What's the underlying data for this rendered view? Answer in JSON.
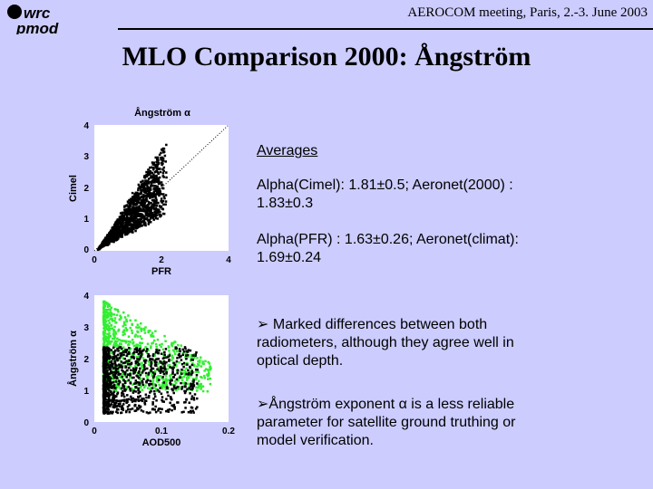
{
  "header": {
    "logo_line1": "wrc",
    "logo_line2": "pmod",
    "meeting": "AEROCOM meeting, Paris, 2.-3. June 2003"
  },
  "title": "MLO Comparison 2000: Ångström",
  "averages": {
    "heading": "Averages",
    "line1": "Alpha(Cimel): 1.81±0.5;   Aeronet(2000) :",
    "line1b": "1.83±0.3",
    "line2": "Alpha(PFR)  : 1.63±0.26; Aeronet(climat):",
    "line2b": "1.69±0.24"
  },
  "bullets": [
    {
      "marker": "Ø",
      "lines": [
        "Marked differences between both",
        "radiometers, although they agree well in",
        "optical depth."
      ]
    },
    {
      "marker": "Ø",
      "lines": [
        "Ångström exponent α is a less reliable",
        "parameter for satellite ground truthing or",
        "model verification."
      ]
    }
  ],
  "chart_data": [
    {
      "type": "scatter",
      "title": "Ångström α",
      "xlabel": "PFR",
      "ylabel": "Cimel",
      "xlim": [
        0,
        4
      ],
      "ylim": [
        0,
        4
      ],
      "xticks": [
        "0",
        "2",
        "4"
      ],
      "yticks": [
        "0",
        "1",
        "2",
        "3",
        "4"
      ],
      "reference_line": "1:1 dotted",
      "series": [
        {
          "name": "Cimel vs PFR",
          "color": "#000000",
          "cluster_center": [
            1.7,
            1.8
          ],
          "x_range": [
            0.1,
            2.5
          ],
          "y_range": [
            0.1,
            3.9
          ]
        }
      ]
    },
    {
      "type": "scatter",
      "title": "",
      "xlabel": "AOD500",
      "ylabel": "Ångström α",
      "xlim": [
        0,
        0.2
      ],
      "ylim": [
        0,
        4
      ],
      "xticks": [
        "0",
        "0.1",
        "0.2"
      ],
      "yticks": [
        "0",
        "1",
        "2",
        "3",
        "4"
      ],
      "series": [
        {
          "name": "Cimel",
          "color": "#33ee33",
          "x_range": [
            0.01,
            0.18
          ],
          "y_range": [
            0.2,
            4.0
          ]
        },
        {
          "name": "PFR",
          "color": "#000000",
          "x_range": [
            0.01,
            0.16
          ],
          "y_range": [
            0.05,
            2.5
          ]
        }
      ]
    }
  ]
}
